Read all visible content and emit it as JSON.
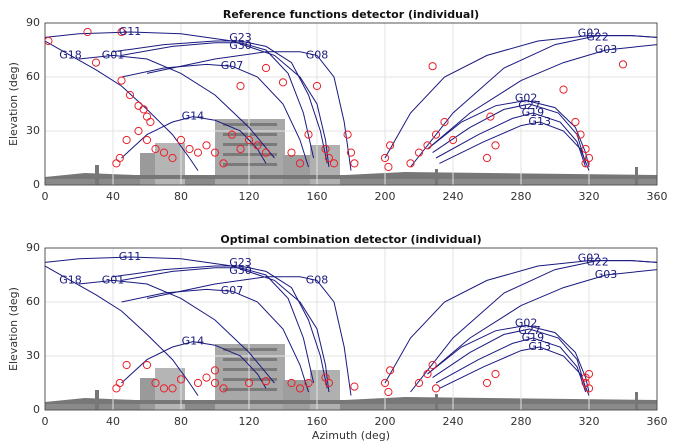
{
  "chart_data": [
    {
      "type": "line",
      "title": "Reference functions detector (individual)",
      "ylabel": "Elevation (deg)",
      "xlim": [
        0,
        360
      ],
      "ylim": [
        0,
        90
      ],
      "xticks": [
        0,
        40,
        80,
        120,
        160,
        200,
        240,
        280,
        320,
        360
      ],
      "yticks": [
        0,
        30,
        60,
        90
      ],
      "grid": true,
      "series": [
        {
          "name": "G11",
          "color": "#1a1a80",
          "x": [
            0,
            20,
            50,
            80,
            110,
            135,
            150,
            160,
            165,
            167
          ],
          "values": [
            82,
            84,
            85,
            84,
            80,
            72,
            60,
            45,
            25,
            10
          ]
        },
        {
          "name": "G23",
          "color": "#1a1a80",
          "x": [
            40,
            70,
            100,
            115,
            130,
            145,
            155,
            162,
            166
          ],
          "values": [
            74,
            78,
            80,
            80,
            77,
            68,
            50,
            30,
            12
          ]
        },
        {
          "name": "G30",
          "color": "#1a1a80",
          "x": [
            45,
            75,
            100,
            115,
            130,
            143,
            152,
            158
          ],
          "values": [
            72,
            77,
            79,
            79,
            75,
            62,
            40,
            15
          ]
        },
        {
          "name": "G18",
          "color": "#1a1a80",
          "x": [
            0,
            15,
            30,
            45,
            60,
            75,
            85,
            90
          ],
          "values": [
            80,
            72,
            64,
            55,
            42,
            28,
            15,
            8
          ]
        },
        {
          "name": "G01",
          "color": "#1a1a80",
          "x": [
            20,
            40,
            60,
            80,
            100,
            120,
            135
          ],
          "values": [
            70,
            72,
            70,
            62,
            50,
            32,
            15
          ]
        },
        {
          "name": "G07",
          "color": "#1a1a80",
          "x": [
            45,
            70,
            95,
            110,
            125,
            140,
            150,
            155
          ],
          "values": [
            60,
            65,
            67,
            66,
            60,
            45,
            25,
            10
          ]
        },
        {
          "name": "G08",
          "color": "#1a1a80",
          "x": [
            60,
            100,
            130,
            150,
            160,
            170,
            176,
            180
          ],
          "values": [
            62,
            70,
            74,
            74,
            72,
            60,
            35,
            8
          ]
        },
        {
          "name": "G14",
          "color": "#1a1a80",
          "x": [
            45,
            60,
            75,
            87,
            100,
            115,
            125,
            130
          ],
          "values": [
            15,
            28,
            35,
            38,
            36,
            30,
            20,
            12
          ]
        },
        {
          "name": "G02",
          "color": "#1a1a80",
          "x": [
            200,
            215,
            235,
            260,
            290,
            320,
            345,
            360
          ],
          "values": [
            15,
            40,
            60,
            72,
            80,
            83,
            83,
            82
          ]
        },
        {
          "name": "G22",
          "color": "#1a1a80",
          "x": [
            215,
            240,
            270,
            300,
            325,
            345,
            360
          ],
          "values": [
            10,
            40,
            65,
            78,
            83,
            83,
            82
          ]
        },
        {
          "name": "G03",
          "color": "#1a1a80",
          "x": [
            225,
            250,
            280,
            305,
            330,
            350,
            360
          ],
          "values": [
            20,
            40,
            58,
            68,
            75,
            77,
            78
          ]
        },
        {
          "name": "G02",
          "color": "#1a1a80",
          "x": [
            225,
            245,
            265,
            283,
            300,
            312,
            318,
            320
          ],
          "values": [
            20,
            35,
            44,
            47,
            43,
            32,
            18,
            10
          ]
        },
        {
          "name": "G27",
          "color": "#1a1a80",
          "x": [
            228,
            250,
            270,
            285,
            302,
            313,
            318
          ],
          "values": [
            18,
            32,
            42,
            45,
            40,
            28,
            12
          ]
        },
        {
          "name": "G19",
          "color": "#1a1a80",
          "x": [
            230,
            255,
            275,
            287,
            303,
            313,
            318
          ],
          "values": [
            15,
            28,
            37,
            40,
            35,
            24,
            10
          ]
        },
        {
          "name": "G13",
          "color": "#1a1a80",
          "x": [
            232,
            258,
            280,
            291,
            305,
            315,
            320
          ],
          "values": [
            12,
            24,
            33,
            35,
            30,
            20,
            8
          ]
        }
      ],
      "markers": {
        "color": "#e8202a",
        "x": [
          2,
          25,
          45,
          30,
          45,
          50,
          55,
          58,
          60,
          62,
          55,
          60,
          65,
          70,
          75,
          42,
          44,
          48,
          80,
          85,
          90,
          95,
          100,
          105,
          110,
          115,
          120,
          125,
          130,
          115,
          130,
          140,
          145,
          150,
          155,
          160,
          165,
          167,
          170,
          178,
          180,
          182,
          200,
          203,
          202,
          215,
          220,
          225,
          230,
          235,
          240,
          260,
          265,
          262,
          228,
          305,
          312,
          315,
          318,
          320,
          318,
          340
        ],
        "values": [
          80,
          85,
          85,
          68,
          58,
          50,
          44,
          42,
          38,
          35,
          30,
          25,
          20,
          18,
          15,
          12,
          15,
          25,
          25,
          20,
          18,
          22,
          18,
          12,
          28,
          20,
          25,
          22,
          18,
          55,
          65,
          57,
          18,
          12,
          28,
          55,
          20,
          15,
          12,
          28,
          18,
          12,
          15,
          22,
          10,
          12,
          18,
          22,
          28,
          35,
          25,
          15,
          22,
          38,
          66,
          53,
          35,
          28,
          20,
          15,
          12,
          67
        ]
      }
    },
    {
      "type": "line",
      "title": "Optimal combination detector (individual)",
      "ylabel": "Elevation (deg)",
      "xlabel": "Azimuth (deg)",
      "xlim": [
        0,
        360
      ],
      "ylim": [
        0,
        90
      ],
      "xticks": [
        0,
        40,
        80,
        120,
        160,
        200,
        240,
        280,
        320,
        360
      ],
      "yticks": [
        0,
        30,
        60,
        90
      ],
      "grid": true,
      "series": [
        {
          "name": "G11",
          "color": "#1a1a80",
          "x": [
            0,
            20,
            50,
            80,
            110,
            135,
            150,
            160,
            165,
            167
          ],
          "values": [
            82,
            84,
            85,
            84,
            80,
            72,
            60,
            45,
            25,
            10
          ]
        },
        {
          "name": "G23",
          "color": "#1a1a80",
          "x": [
            40,
            70,
            100,
            115,
            130,
            145,
            155,
            162,
            166
          ],
          "values": [
            74,
            78,
            80,
            80,
            77,
            68,
            50,
            30,
            12
          ]
        },
        {
          "name": "G30",
          "color": "#1a1a80",
          "x": [
            45,
            75,
            100,
            115,
            130,
            143,
            152,
            158
          ],
          "values": [
            72,
            77,
            79,
            79,
            75,
            62,
            40,
            15
          ]
        },
        {
          "name": "G18",
          "color": "#1a1a80",
          "x": [
            0,
            15,
            30,
            45,
            60,
            75,
            85,
            90
          ],
          "values": [
            80,
            72,
            64,
            55,
            42,
            28,
            15,
            8
          ]
        },
        {
          "name": "G01",
          "color": "#1a1a80",
          "x": [
            20,
            40,
            60,
            80,
            100,
            120,
            135
          ],
          "values": [
            70,
            72,
            70,
            62,
            50,
            32,
            15
          ]
        },
        {
          "name": "G07",
          "color": "#1a1a80",
          "x": [
            45,
            70,
            95,
            110,
            125,
            140,
            150,
            155
          ],
          "values": [
            60,
            65,
            67,
            66,
            60,
            45,
            25,
            10
          ]
        },
        {
          "name": "G08",
          "color": "#1a1a80",
          "x": [
            60,
            100,
            130,
            150,
            160,
            170,
            176,
            180
          ],
          "values": [
            62,
            70,
            74,
            74,
            72,
            60,
            35,
            8
          ]
        },
        {
          "name": "G14",
          "color": "#1a1a80",
          "x": [
            45,
            60,
            75,
            87,
            100,
            115,
            125,
            130
          ],
          "values": [
            15,
            28,
            35,
            38,
            36,
            30,
            20,
            12
          ]
        },
        {
          "name": "G02",
          "color": "#1a1a80",
          "x": [
            200,
            215,
            235,
            260,
            290,
            320,
            345,
            360
          ],
          "values": [
            15,
            40,
            60,
            72,
            80,
            83,
            83,
            82
          ]
        },
        {
          "name": "G22",
          "color": "#1a1a80",
          "x": [
            215,
            240,
            270,
            300,
            325,
            345,
            360
          ],
          "values": [
            10,
            40,
            65,
            78,
            83,
            83,
            82
          ]
        },
        {
          "name": "G03",
          "color": "#1a1a80",
          "x": [
            225,
            250,
            280,
            305,
            330,
            350,
            360
          ],
          "values": [
            20,
            40,
            58,
            68,
            75,
            77,
            78
          ]
        },
        {
          "name": "G02",
          "color": "#1a1a80",
          "x": [
            225,
            245,
            265,
            283,
            300,
            312,
            318,
            320
          ],
          "values": [
            20,
            35,
            44,
            47,
            43,
            32,
            18,
            10
          ]
        },
        {
          "name": "G27",
          "color": "#1a1a80",
          "x": [
            228,
            250,
            270,
            285,
            302,
            313,
            318
          ],
          "values": [
            18,
            32,
            42,
            45,
            40,
            28,
            12
          ]
        },
        {
          "name": "G19",
          "color": "#1a1a80",
          "x": [
            230,
            255,
            275,
            287,
            303,
            313,
            318
          ],
          "values": [
            15,
            28,
            37,
            40,
            35,
            24,
            10
          ]
        },
        {
          "name": "G13",
          "color": "#1a1a80",
          "x": [
            232,
            258,
            280,
            291,
            305,
            315,
            320
          ],
          "values": [
            12,
            24,
            33,
            35,
            30,
            20,
            8
          ]
        }
      ],
      "markers": {
        "color": "#e8202a",
        "x": [
          42,
          44,
          48,
          60,
          65,
          70,
          75,
          80,
          90,
          95,
          100,
          100,
          105,
          120,
          130,
          145,
          150,
          155,
          165,
          167,
          182,
          200,
          203,
          202,
          220,
          225,
          228,
          230,
          260,
          265,
          318,
          320,
          318,
          320
        ],
        "values": [
          12,
          15,
          25,
          25,
          15,
          12,
          12,
          17,
          15,
          18,
          15,
          22,
          12,
          15,
          16,
          15,
          12,
          15,
          18,
          15,
          13,
          15,
          22,
          10,
          15,
          20,
          25,
          12,
          15,
          20,
          15,
          12,
          18,
          20
        ]
      }
    }
  ]
}
